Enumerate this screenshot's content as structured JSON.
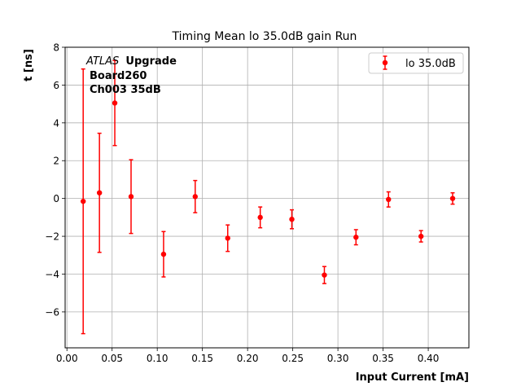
{
  "chart_data": {
    "type": "scatter",
    "title": "Timing Mean lo 35.0dB gain Run",
    "xlabel": "Input Current [mA]",
    "ylabel": "t [ns]",
    "xlim": [
      -0.002,
      0.445
    ],
    "ylim": [
      -7.9,
      8.0
    ],
    "xticks": [
      0.0,
      0.05,
      0.1,
      0.15,
      0.2,
      0.25,
      0.3,
      0.35,
      0.4
    ],
    "xtick_labels": [
      "0.00",
      "0.05",
      "0.10",
      "0.15",
      "0.20",
      "0.25",
      "0.30",
      "0.35",
      "0.40"
    ],
    "yticks": [
      -6,
      -4,
      -2,
      0,
      2,
      4,
      6,
      8
    ],
    "ytick_labels": [
      "−6",
      "−4",
      "−2",
      "0",
      "2",
      "4",
      "6",
      "8"
    ],
    "grid": true,
    "legend_position": "top-right",
    "annotation": {
      "italic": "ATLAS",
      "bold": "Upgrade",
      "line2": "Board260",
      "line3": "Ch003 35dB"
    },
    "series": [
      {
        "name": "lo 35.0dB",
        "color": "#ff0000",
        "x": [
          0.018,
          0.036,
          0.053,
          0.071,
          0.107,
          0.142,
          0.178,
          0.214,
          0.249,
          0.285,
          0.32,
          0.356,
          0.392,
          0.427
        ],
        "y": [
          -0.15,
          0.3,
          5.05,
          0.1,
          -2.95,
          0.1,
          -2.1,
          -1.0,
          -1.1,
          -4.05,
          -2.05,
          -0.05,
          -2.0,
          0.0
        ],
        "yerr": [
          7.0,
          3.15,
          2.25,
          1.95,
          1.2,
          0.85,
          0.7,
          0.55,
          0.5,
          0.45,
          0.4,
          0.4,
          0.3,
          0.3
        ]
      }
    ]
  }
}
